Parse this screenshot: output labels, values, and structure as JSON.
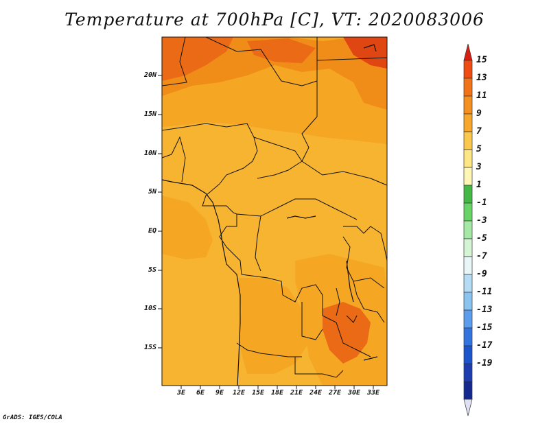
{
  "title": "Temperature at 700hPa [C], VT: 2020083006",
  "credit": "GrADS: IGES/COLA",
  "map": {
    "lat_labels": [
      "20N",
      "15N",
      "10N",
      "5N",
      "EQ",
      "5S",
      "10S",
      "15S"
    ],
    "lon_labels": [
      "3E",
      "6E",
      "9E",
      "12E",
      "15E",
      "18E",
      "21E",
      "24E",
      "27E",
      "30E",
      "33E"
    ],
    "fill_colors": [
      "#f6c048",
      "#f5a623",
      "#f08c18",
      "#ea6a16",
      "#e04612"
    ]
  },
  "colorbar": {
    "labels": [
      "15",
      "13",
      "11",
      "9",
      "7",
      "5",
      "3",
      "1",
      "-1",
      "-3",
      "-5",
      "-7",
      "-9",
      "-11",
      "-13",
      "-15",
      "-17",
      "-19"
    ],
    "colors": [
      "#d81e10",
      "#ee4c12",
      "#f27218",
      "#f58f20",
      "#f7a82c",
      "#fbc84e",
      "#fde684",
      "#fdf6b4",
      "#44b846",
      "#68d468",
      "#a6e8a6",
      "#d4f4d4",
      "#e8f6f8",
      "#b4dcf4",
      "#8cc4f0",
      "#5c9cec",
      "#3474e0",
      "#1c54cc",
      "#1c3cb0",
      "#142890",
      "#e0e0f4"
    ]
  }
}
